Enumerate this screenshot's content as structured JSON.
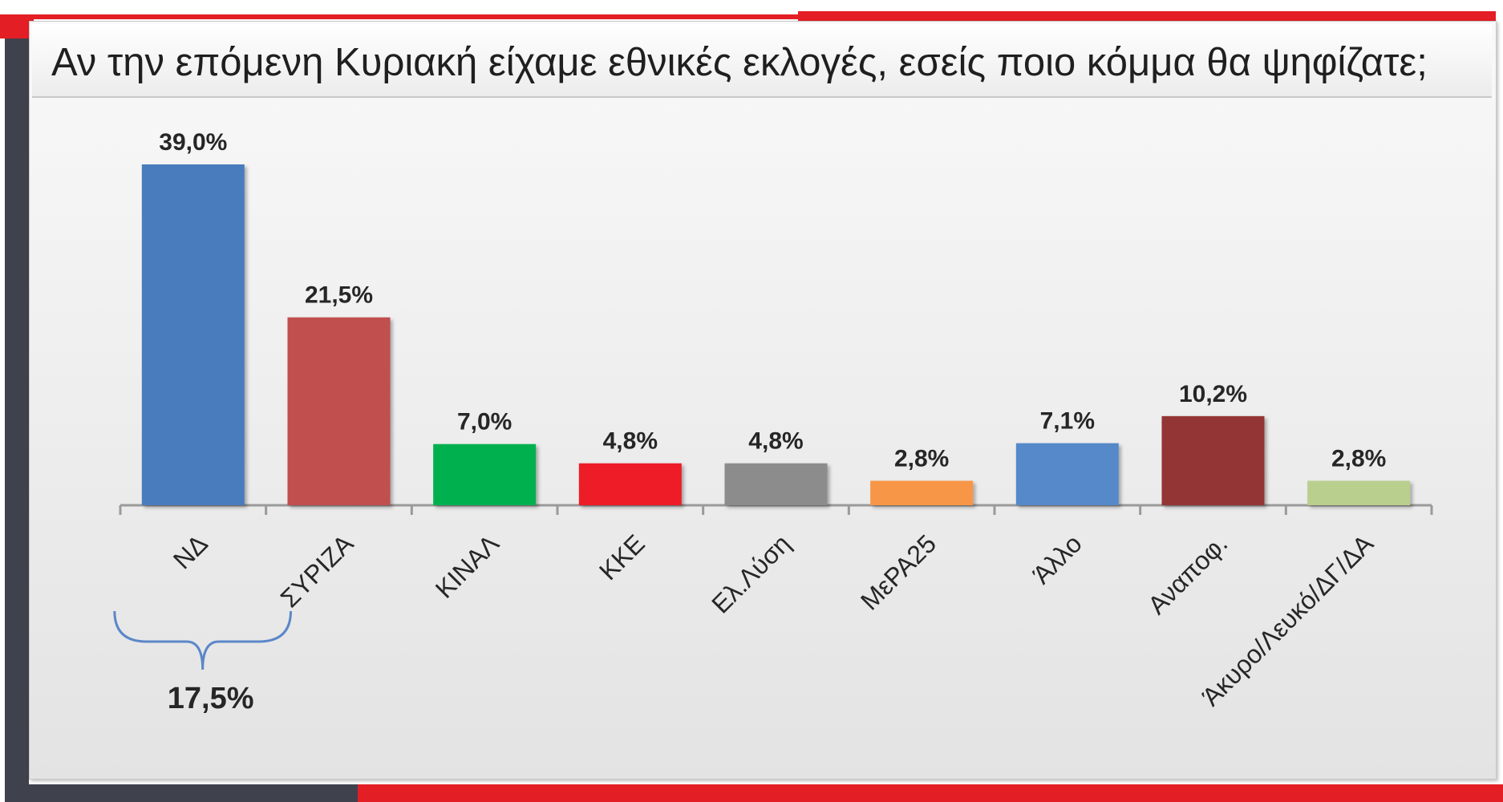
{
  "chart_data": {
    "type": "bar",
    "title": "Αν την επόμενη Κυριακή είχαμε εθνικές εκλογές, εσείς ποιο κόμμα θα ψηφίζατε;",
    "categories": [
      "ΝΔ",
      "ΣΥΡΙΖΑ",
      "ΚΙΝΑΛ",
      "ΚΚΕ",
      "Ελ.Λύση",
      "ΜεΡΑ25",
      "Άλλο",
      "Αναποφ.",
      "Άκυρο/Λευκό/ΔΓ/ΔΑ"
    ],
    "values": [
      39.0,
      21.5,
      7.0,
      4.8,
      4.8,
      2.8,
      7.1,
      10.2,
      2.8
    ],
    "value_labels": [
      "39,0%",
      "21,5%",
      "7,0%",
      "4,8%",
      "4,8%",
      "2,8%",
      "7,1%",
      "10,2%",
      "2,8%"
    ],
    "colors": [
      "#4a7bbd",
      "#c0504d",
      "#00b050",
      "#ee1c25",
      "#8c8c8c",
      "#f79646",
      "#5589c9",
      "#943634",
      "#b9cf8e"
    ],
    "ylim": [
      0,
      39.0
    ],
    "grid": false,
    "legend": "none",
    "annotation": {
      "label": "17,5%",
      "from": "ΝΔ",
      "to": "ΣΥΡΙΖΑ",
      "color": "#5b87c8"
    }
  }
}
